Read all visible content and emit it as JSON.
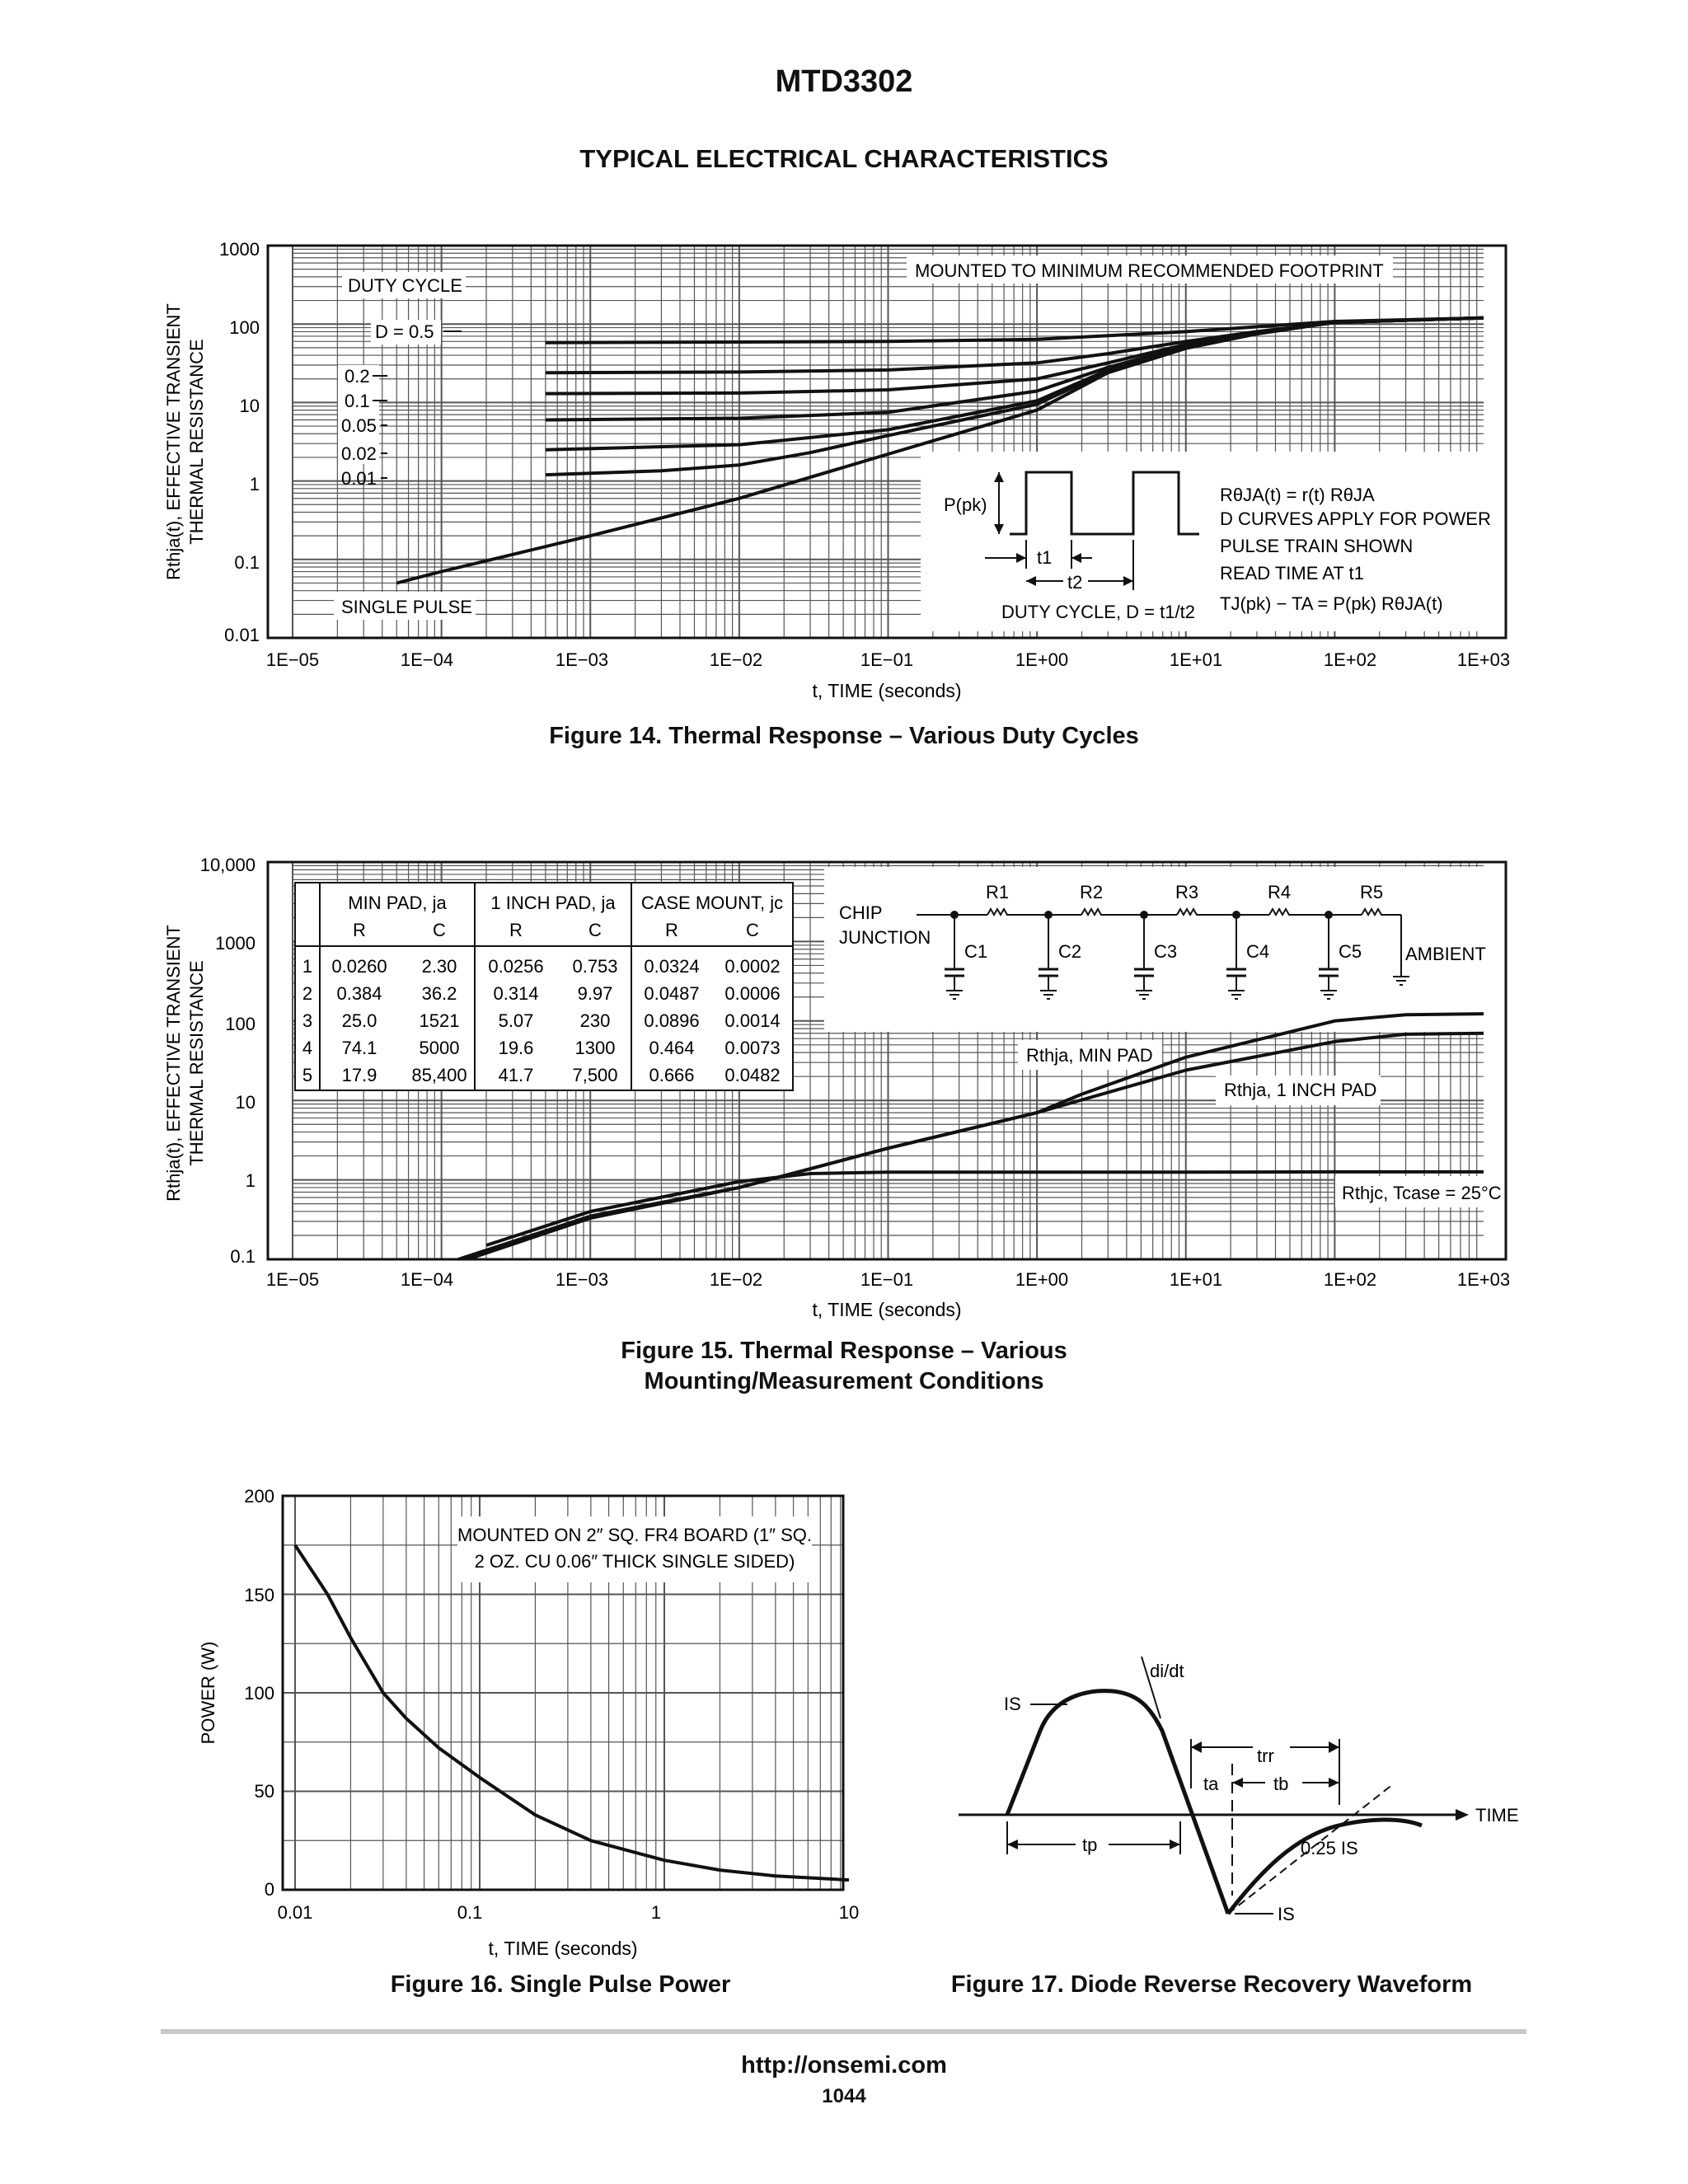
{
  "page": {
    "part_number": "MTD3302",
    "section_title": "TYPICAL ELECTRICAL CHARACTERISTICS",
    "footer_url": "http://onsemi.com",
    "page_number": "1044"
  },
  "figure_captions": {
    "fig14": "Figure 14. Thermal Response – Various Duty Cycles",
    "fig15_line1": "Figure 15. Thermal Response – Various",
    "fig15_line2": "Mounting/Measurement Conditions",
    "fig16": "Figure 16. Single Pulse Power",
    "fig17": "Figure 17. Diode Reverse Recovery Waveform"
  },
  "fig14_text": {
    "ylabel_line1": "Rthja(t), EFFECTIVE TRANSIENT",
    "ylabel_line2": "THERMAL RESISTANCE",
    "xlabel": "t, TIME (seconds)",
    "yticks": [
      "1000",
      "100",
      "10",
      "1",
      "0.1",
      "0.01"
    ],
    "xticks": [
      "1E−05",
      "1E−04",
      "1E−03",
      "1E−02",
      "1E−01",
      "1E+00",
      "1E+01",
      "1E+02",
      "1E+03"
    ],
    "footprint_note": "MOUNTED TO MINIMUM RECOMMENDED FOOTPRINT",
    "duty_cycle_header": "DUTY CYCLE",
    "duty_labels": [
      "D = 0.5",
      "0.2",
      "0.1",
      "0.05",
      "0.02",
      "0.01"
    ],
    "single_pulse": "SINGLE PULSE",
    "inset_ppk": "P(pk)",
    "inset_t1": "t1",
    "inset_t2": "t2",
    "inset_duty": "DUTY CYCLE, D = t1/t2",
    "notes": [
      "RθJA(t) = r(t) RθJA",
      "D CURVES APPLY FOR POWER",
      "PULSE TRAIN SHOWN",
      "READ TIME AT t1",
      "TJ(pk) − TA = P(pk) RθJA(t)"
    ]
  },
  "fig15_text": {
    "ylabel_line1": "Rthja(t), EFFECTIVE TRANSIENT",
    "ylabel_line2": "THERMAL RESISTANCE",
    "xlabel": "t, TIME (seconds)",
    "yticks": [
      "10,000",
      "1000",
      "100",
      "10",
      "1",
      "0.1"
    ],
    "xticks": [
      "1E−05",
      "1E−04",
      "1E−03",
      "1E−02",
      "1E−01",
      "1E+00",
      "1E+01",
      "1E+02",
      "1E+03"
    ],
    "table_group_headers": [
      "MIN PAD, ja",
      "1 INCH PAD, ja",
      "CASE MOUNT, jc"
    ],
    "table_sub_headers": [
      "R",
      "C",
      "R",
      "C",
      "R",
      "C"
    ],
    "table_rows": [
      [
        "1",
        "0.0260",
        "2.30",
        "0.0256",
        "0.753",
        "0.0324",
        "0.0002"
      ],
      [
        "2",
        "0.384",
        "36.2",
        "0.314",
        "9.97",
        "0.0487",
        "0.0006"
      ],
      [
        "3",
        "25.0",
        "1521",
        "5.07",
        "230",
        "0.0896",
        "0.0014"
      ],
      [
        "4",
        "74.1",
        "5000",
        "19.6",
        "1300",
        "0.464",
        "0.0073"
      ],
      [
        "5",
        "17.9",
        "85,400",
        "41.7",
        "7,500",
        "0.666",
        "0.0482"
      ]
    ],
    "network_chip_line1": "CHIP",
    "network_chip_line2": "JUNCTION",
    "network_ambient": "AMBIENT",
    "resistors": [
      "R1",
      "R2",
      "R3",
      "R4",
      "R5"
    ],
    "capacitors": [
      "C1",
      "C2",
      "C3",
      "C4",
      "C5"
    ],
    "label_min_pad": "Rthja, MIN PAD",
    "label_1inch_pad": "Rthja, 1 INCH PAD",
    "label_case": "Rthjc, Tcase = 25°C"
  },
  "fig16_text": {
    "ylabel": "POWER (W)",
    "xlabel": "t, TIME (seconds)",
    "yticks": [
      "200",
      "150",
      "100",
      "50",
      "0"
    ],
    "xticks": [
      "0.01",
      "0.1",
      "1",
      "10"
    ],
    "note_line1": "MOUNTED ON 2″ SQ. FR4 BOARD (1″ SQ.",
    "note_line2": "2 OZ. CU 0.06″ THICK SINGLE SIDED)"
  },
  "fig17_text": {
    "is_top": "IS",
    "didt": "di/dt",
    "trr": "trr",
    "ta": "ta",
    "tb": "tb",
    "time": "TIME",
    "tp": "tp",
    "quarter_is": "0.25 IS",
    "is_bottom": "IS"
  },
  "colors": {
    "ink": "#111111",
    "grid": "#555555",
    "rule": "#c8c8c8",
    "background": "#ffffff"
  },
  "chart_data": [
    {
      "type": "line",
      "title": "Figure 14. Thermal Response – Various Duty Cycles",
      "xlabel": "t, TIME (seconds)",
      "ylabel": "Rthja(t), EFFECTIVE TRANSIENT THERMAL RESISTANCE",
      "x_scale": "log",
      "y_scale": "log",
      "xlim": [
        1e-05,
        1000
      ],
      "ylim": [
        0.01,
        1000
      ],
      "grid": true,
      "series": [
        {
          "name": "D = 0.5",
          "x": [
            0.0005,
            0.01,
            0.1,
            1,
            10,
            100,
            1000
          ],
          "y": [
            58,
            59,
            60,
            64,
            80,
            108,
            120
          ]
        },
        {
          "name": "0.2",
          "x": [
            0.0005,
            0.01,
            0.1,
            1,
            3,
            10,
            30,
            100,
            1000
          ],
          "y": [
            24,
            24.5,
            26,
            32,
            42,
            60,
            80,
            105,
            120
          ]
        },
        {
          "name": "0.1",
          "x": [
            0.0005,
            0.01,
            0.1,
            1,
            3,
            10,
            30,
            100,
            1000
          ],
          "y": [
            13,
            13.2,
            14.5,
            20,
            32,
            55,
            78,
            105,
            120
          ]
        },
        {
          "name": "0.05",
          "x": [
            0.0005,
            0.01,
            0.1,
            1,
            3,
            10,
            30,
            100,
            1000
          ],
          "y": [
            6,
            6.3,
            7.5,
            14,
            28,
            52,
            77,
            105,
            120
          ]
        },
        {
          "name": "0.02",
          "x": [
            0.0005,
            0.01,
            0.1,
            1,
            3,
            10,
            30,
            100,
            1000
          ],
          "y": [
            2.5,
            2.9,
            4.5,
            10.5,
            26,
            51,
            76,
            105,
            120
          ]
        },
        {
          "name": "0.01",
          "x": [
            0.0005,
            0.003,
            0.01,
            0.03,
            0.1,
            1,
            3,
            10,
            30,
            100,
            1000
          ],
          "y": [
            1.2,
            1.35,
            1.6,
            2.3,
            3.8,
            9.5,
            25,
            50,
            76,
            105,
            120
          ]
        },
        {
          "name": "SINGLE PULSE",
          "x": [
            5e-05,
            0.0001,
            0.001,
            0.01,
            0.1,
            1,
            3,
            10,
            30,
            100,
            1000
          ],
          "y": [
            0.05,
            0.07,
            0.2,
            0.6,
            2.2,
            8,
            24,
            49,
            75,
            105,
            120
          ]
        }
      ]
    },
    {
      "type": "line",
      "title": "Figure 15. Thermal Response – Various Mounting/Measurement Conditions",
      "xlabel": "t, TIME (seconds)",
      "ylabel": "Rthja(t), EFFECTIVE TRANSIENT THERMAL RESISTANCE",
      "x_scale": "log",
      "y_scale": "log",
      "xlim": [
        1e-05,
        1000
      ],
      "ylim": [
        0.1,
        10000
      ],
      "grid": true,
      "series": [
        {
          "name": "Rthja, MIN PAD",
          "x": [
            0.00013,
            0.001,
            0.01,
            0.1,
            1,
            2,
            10,
            100,
            300,
            1000
          ],
          "y": [
            0.1,
            0.35,
            0.8,
            2.5,
            7,
            12,
            35,
            100,
            120,
            123
          ]
        },
        {
          "name": "Rthja, 1 INCH PAD",
          "x": [
            0.00015,
            0.001,
            0.01,
            0.1,
            1,
            10,
            100,
            300,
            1000
          ],
          "y": [
            0.1,
            0.33,
            0.8,
            2.5,
            7,
            24,
            55,
            68,
            70
          ]
        },
        {
          "name": "Rthjc, Tcase = 25°C",
          "x": [
            0.0002,
            0.001,
            0.01,
            0.03,
            0.1,
            1,
            10,
            100,
            1000
          ],
          "y": [
            0.15,
            0.4,
            0.95,
            1.2,
            1.25,
            1.25,
            1.25,
            1.26,
            1.26
          ]
        }
      ]
    },
    {
      "type": "line",
      "title": "Figure 16. Single Pulse Power",
      "xlabel": "t, TIME (seconds)",
      "ylabel": "POWER (W)",
      "x_scale": "log",
      "y_scale": "linear",
      "xlim": [
        0.01,
        10
      ],
      "ylim": [
        0,
        200
      ],
      "grid": true,
      "series": [
        {
          "name": "",
          "x": [
            0.01,
            0.015,
            0.02,
            0.03,
            0.04,
            0.06,
            0.1,
            0.2,
            0.4,
            1,
            2,
            4,
            10
          ],
          "y": [
            175,
            150,
            128,
            100,
            87,
            72,
            57,
            38,
            25,
            15,
            10,
            7,
            5
          ]
        }
      ]
    }
  ]
}
